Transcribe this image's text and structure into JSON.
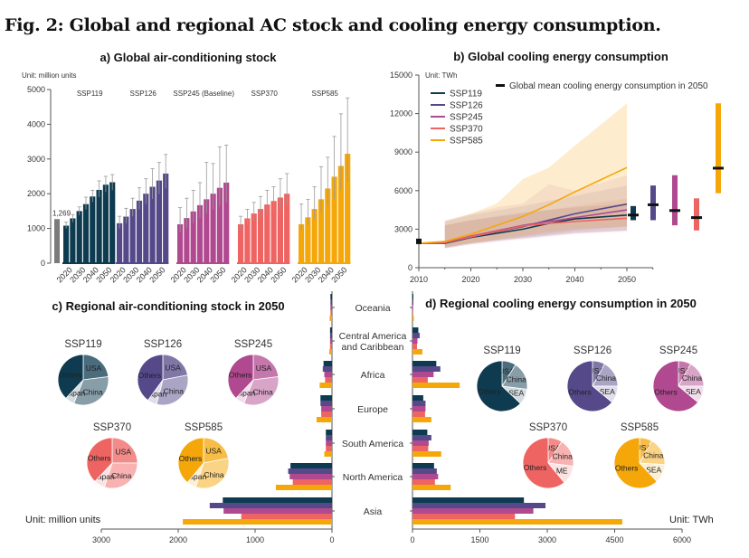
{
  "figure_title": "Fig. 2: Global and regional AC stock and cooling energy consumption.",
  "colors": {
    "SSP119": "#0e3b50",
    "SSP126": "#55498a",
    "SSP245": "#b0498f",
    "SSP370": "#ee6462",
    "SSP585": "#f5a70a",
    "historic": "#7b7b7b"
  },
  "chart_data": [
    {
      "type": "bar",
      "title": "a) Global air-conditioning stock",
      "unit_label": "Unit: million units",
      "ylim": [
        0,
        5000
      ],
      "yticks": [
        0,
        1000,
        2000,
        3000,
        4000,
        5000
      ],
      "historic": {
        "label": "1,269",
        "value": 1269
      },
      "years": [
        2015,
        2020,
        2025,
        2030,
        2035,
        2040,
        2045,
        2050
      ],
      "year_tick_labels": [
        "2020",
        "2030",
        "2040",
        "2050"
      ],
      "series": [
        {
          "name": "SSP119",
          "values": [
            1080,
            1290,
            1500,
            1700,
            1920,
            2110,
            2260,
            2330
          ],
          "error_high": [
            1180,
            1400,
            1620,
            1900,
            2100,
            2370,
            2500,
            2550
          ],
          "error_low": [
            1000,
            1180,
            1380,
            1550,
            1760,
            1900,
            2050,
            2100
          ]
        },
        {
          "name": "SSP126",
          "values": [
            1150,
            1340,
            1560,
            1800,
            2000,
            2200,
            2380,
            2580
          ],
          "error_high": [
            1350,
            1580,
            1870,
            2170,
            2430,
            2720,
            2900,
            3130
          ],
          "error_low": [
            1000,
            1150,
            1350,
            1550,
            1700,
            1850,
            2000,
            2150
          ]
        },
        {
          "name": "SSP245 (Baseline)",
          "values": [
            1120,
            1300,
            1490,
            1670,
            1840,
            2000,
            2170,
            2320
          ],
          "error_high": [
            1600,
            1870,
            2100,
            2320,
            2900,
            2870,
            3350,
            3400
          ],
          "error_low": [
            900,
            1000,
            1150,
            1300,
            1450,
            1550,
            1650,
            1750
          ]
        },
        {
          "name": "SSP370",
          "values": [
            1120,
            1290,
            1430,
            1560,
            1690,
            1790,
            1890,
            2000
          ],
          "error_high": [
            1350,
            1550,
            1750,
            1920,
            2100,
            2200,
            2430,
            2580
          ],
          "error_low": [
            950,
            1100,
            1200,
            1300,
            1400,
            1450,
            1550,
            1650
          ]
        },
        {
          "name": "SSP585",
          "values": [
            1120,
            1320,
            1560,
            1840,
            2150,
            2490,
            2800,
            3150
          ],
          "error_high": [
            1700,
            1840,
            2200,
            2780,
            3050,
            3650,
            4300,
            4760
          ],
          "error_low": [
            950,
            1100,
            1250,
            1450,
            1650,
            1850,
            2100,
            2350
          ]
        }
      ]
    },
    {
      "type": "line",
      "title": "b) Global cooling energy consumption",
      "unit_label": "Unit: TWh",
      "xlim": [
        2010,
        2055
      ],
      "xticks": [
        2010,
        2020,
        2030,
        2040,
        2050
      ],
      "ylim": [
        0,
        15000
      ],
      "yticks": [
        0,
        3000,
        6000,
        9000,
        12000,
        15000
      ],
      "historic_point": {
        "x": 2010,
        "y": 2050
      },
      "mean_legend": "Global mean cooling energy consumption in 2050",
      "x": [
        2010,
        2015,
        2020,
        2030,
        2035,
        2040,
        2050
      ],
      "series": [
        {
          "name": "SSP119",
          "values": [
            1900,
            1900,
            2350,
            3000,
            3450,
            3800,
            4100
          ],
          "band_x": [
            2015,
            2020,
            2030,
            2040,
            2050
          ],
          "band_low": [
            1550,
            1900,
            2300,
            2700,
            2900
          ],
          "band_high": [
            3300,
            3700,
            4300,
            4700,
            5000
          ],
          "range_2050": [
            3700,
            4800
          ],
          "mean_2050": 4100
        },
        {
          "name": "SSP126",
          "values": [
            1900,
            1950,
            2400,
            3200,
            3700,
            4200,
            4950
          ],
          "band_x": [
            2015,
            2020,
            2030,
            2040,
            2050
          ],
          "band_low": [
            1550,
            1900,
            2400,
            2900,
            3200
          ],
          "band_high": [
            3600,
            4100,
            4800,
            5600,
            6400
          ],
          "range_2050": [
            3700,
            6400
          ],
          "mean_2050": 4900
        },
        {
          "name": "SSP245",
          "values": [
            1900,
            1950,
            2450,
            3300,
            3600,
            3900,
            4500
          ],
          "band_x": [
            2015,
            2020,
            2025,
            2030,
            2035,
            2040,
            2050
          ],
          "band_low": [
            1500,
            1800,
            2100,
            2300,
            2500,
            2700,
            2900
          ],
          "band_high": [
            3700,
            4200,
            4700,
            5000,
            6500,
            6000,
            7200
          ],
          "range_2050": [
            3300,
            7200
          ],
          "mean_2050": 4450
        },
        {
          "name": "SSP370",
          "values": [
            1900,
            1950,
            2400,
            3250,
            3450,
            3600,
            3850
          ],
          "band_x": [
            2015,
            2020,
            2030,
            2040,
            2050
          ],
          "band_low": [
            1500,
            1800,
            2200,
            2600,
            2800
          ],
          "band_high": [
            3300,
            3700,
            4200,
            4800,
            5400
          ],
          "range_2050": [
            2900,
            5400
          ],
          "mean_2050": 3900
        },
        {
          "name": "SSP585",
          "values": [
            1900,
            2050,
            2600,
            4000,
            4900,
            5900,
            7800
          ],
          "band_x": [
            2015,
            2020,
            2025,
            2030,
            2035,
            2040,
            2050
          ],
          "band_low": [
            1600,
            1900,
            2200,
            2500,
            2800,
            3000,
            3200
          ],
          "band_high": [
            3600,
            4200,
            5000,
            6900,
            7800,
            9500,
            12800
          ],
          "range_2050": [
            5800,
            12800
          ],
          "mean_2050": 7750
        }
      ]
    },
    {
      "type": "bar",
      "orientation": "horizontal",
      "title": "c) Regional air-conditioning stock in 2050",
      "unit_label": "Unit: million units",
      "xlim": [
        0,
        3000
      ],
      "xticks": [
        3000,
        2000,
        1000,
        0
      ],
      "categories": [
        "Oceania",
        "Central America\nand Caribbean",
        "Africa",
        "Europe",
        "South America",
        "North America",
        "Asia"
      ],
      "series": [
        {
          "name": "SSP119",
          "values": [
            20,
            25,
            110,
            150,
            80,
            540,
            1420
          ]
        },
        {
          "name": "SSP126",
          "values": [
            20,
            25,
            120,
            150,
            80,
            570,
            1590
          ]
        },
        {
          "name": "SSP245",
          "values": [
            20,
            25,
            100,
            140,
            80,
            550,
            1410
          ]
        },
        {
          "name": "SSP370",
          "values": [
            20,
            25,
            90,
            140,
            80,
            510,
            1180
          ]
        },
        {
          "name": "SSP585",
          "values": [
            30,
            35,
            160,
            200,
            100,
            730,
            1940
          ]
        }
      ],
      "pies": [
        {
          "name": "SSP119",
          "slices": [
            {
              "label": "USA",
              "value": 0.23
            },
            {
              "label": "China",
              "value": 0.33
            },
            {
              "label": "Japan",
              "value": 0.06
            },
            {
              "label": "Others",
              "value": 0.38
            }
          ]
        },
        {
          "name": "SSP126",
          "slices": [
            {
              "label": "USA",
              "value": 0.22
            },
            {
              "label": "China",
              "value": 0.32
            },
            {
              "label": "Japan",
              "value": 0.06
            },
            {
              "label": "Others",
              "value": 0.4
            }
          ]
        },
        {
          "name": "SSP245",
          "slices": [
            {
              "label": "USA",
              "value": 0.23
            },
            {
              "label": "China",
              "value": 0.33
            },
            {
              "label": "Japan",
              "value": 0.06
            },
            {
              "label": "Others",
              "value": 0.38
            }
          ]
        },
        {
          "name": "SSP370",
          "slices": [
            {
              "label": "USA",
              "value": 0.25
            },
            {
              "label": "China",
              "value": 0.3
            },
            {
              "label": "Japan",
              "value": 0.07
            },
            {
              "label": "Others",
              "value": 0.38
            }
          ]
        },
        {
          "name": "SSP585",
          "slices": [
            {
              "label": "USA",
              "value": 0.22
            },
            {
              "label": "China",
              "value": 0.33
            },
            {
              "label": "Japan",
              "value": 0.06
            },
            {
              "label": "Others",
              "value": 0.39
            }
          ]
        }
      ]
    },
    {
      "type": "bar",
      "orientation": "horizontal",
      "title": "d) Regional cooling energy consumption in 2050",
      "unit_label": "Unit: TWh",
      "xlim": [
        0,
        6000
      ],
      "xticks": [
        0,
        1500,
        3000,
        4500,
        6000
      ],
      "categories": [
        "Oceania",
        "Central America\nand Caribbean",
        "Africa",
        "Europe",
        "South America",
        "North America",
        "Asia"
      ],
      "series": [
        {
          "name": "SSP119",
          "values": [
            20,
            130,
            530,
            240,
            330,
            480,
            2480
          ]
        },
        {
          "name": "SSP126",
          "values": [
            20,
            160,
            620,
            290,
            420,
            540,
            2960
          ]
        },
        {
          "name": "SSP245",
          "values": [
            15,
            110,
            470,
            290,
            360,
            570,
            2690
          ]
        },
        {
          "name": "SSP370",
          "values": [
            15,
            100,
            340,
            280,
            350,
            500,
            2280
          ]
        },
        {
          "name": "SSP585",
          "values": [
            30,
            220,
            1050,
            420,
            640,
            850,
            4670
          ]
        }
      ],
      "pies": [
        {
          "name": "SSP119",
          "slices": [
            {
              "label": "USA",
              "value": 0.09
            },
            {
              "label": "China",
              "value": 0.18
            },
            {
              "label": "SEA",
              "value": 0.1
            },
            {
              "label": "Others",
              "value": 0.63
            }
          ]
        },
        {
          "name": "SSP126",
          "slices": [
            {
              "label": "USA",
              "value": 0.08
            },
            {
              "label": "China",
              "value": 0.17
            },
            {
              "label": "SEA",
              "value": 0.11
            },
            {
              "label": "Others",
              "value": 0.64
            }
          ]
        },
        {
          "name": "SSP245",
          "slices": [
            {
              "label": "USA",
              "value": 0.08
            },
            {
              "label": "China",
              "value": 0.17
            },
            {
              "label": "SEA",
              "value": 0.11
            },
            {
              "label": "Others",
              "value": 0.64
            }
          ]
        },
        {
          "name": "SSP370",
          "slices": [
            {
              "label": "USA",
              "value": 0.09
            },
            {
              "label": "China",
              "value": 0.18
            },
            {
              "label": "ME",
              "value": 0.12
            },
            {
              "label": "Others",
              "value": 0.61
            }
          ]
        },
        {
          "name": "SSP585",
          "slices": [
            {
              "label": "USA",
              "value": 0.08
            },
            {
              "label": "China",
              "value": 0.18
            },
            {
              "label": "SEA",
              "value": 0.12
            },
            {
              "label": "Others",
              "value": 0.62
            }
          ]
        }
      ]
    }
  ]
}
